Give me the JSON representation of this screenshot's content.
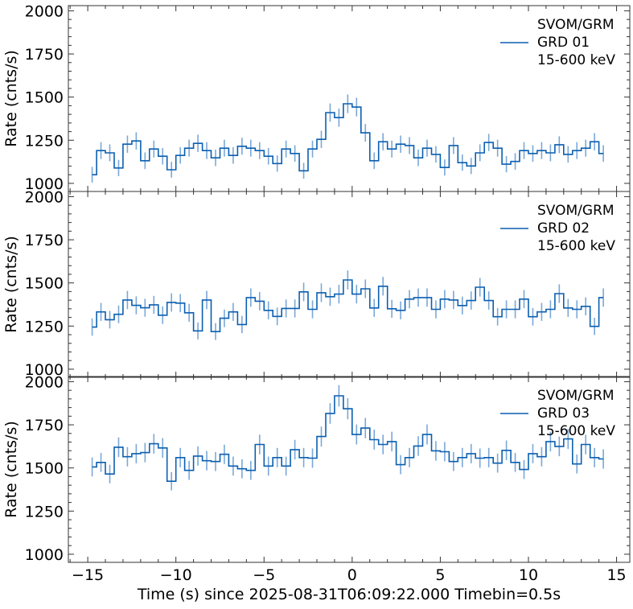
{
  "chart_data": {
    "type": "line",
    "style": "step",
    "xlabel": "Time (s) since 2025-08-31T06:09:22.000 Timebin=0.5s",
    "xlim": [
      -16.1,
      15.75
    ],
    "xticks": [
      -15,
      -10,
      -5,
      0,
      5,
      10,
      15
    ],
    "xtick_labels": [
      "−15",
      "−10",
      "−5",
      "0",
      "5",
      "10",
      "15"
    ],
    "x_start": -14.75,
    "x_step": 0.5,
    "line_color": "#0b5fb0",
    "errorbar_color": "#7aa8d8",
    "grid": false,
    "legend_placement": "upper-right",
    "panels": [
      {
        "ylabel": "Rate (cnts/s)",
        "ylim": [
          953,
          2030
        ],
        "yticks": [
          1000,
          1250,
          1500,
          1750,
          2000
        ],
        "ytick_labels": [
          "1000",
          "1250",
          "1500",
          "1750",
          "2000"
        ],
        "legend": [
          "SVOM/GRM",
          "GRD 01",
          "15-600 keV"
        ],
        "values": [
          1050,
          1190,
          1177,
          1089,
          1227,
          1246,
          1131,
          1199,
          1157,
          1079,
          1162,
          1204,
          1232,
          1190,
          1148,
          1204,
          1162,
          1215,
          1204,
          1190,
          1157,
          1115,
          1199,
          1173,
          1073,
          1199,
          1255,
          1410,
          1381,
          1461,
          1442,
          1293,
          1131,
          1241,
          1199,
          1227,
          1219,
          1148,
          1204,
          1168,
          1092,
          1219,
          1120,
          1101,
          1177,
          1237,
          1204,
          1111,
          1127,
          1190,
          1173,
          1190,
          1177,
          1224,
          1168,
          1190,
          1204,
          1241,
          1173
        ],
        "yerr": [
          46,
          49,
          49,
          47,
          50,
          50,
          48,
          49,
          48,
          46,
          48,
          49,
          50,
          49,
          48,
          49,
          48,
          49,
          49,
          49,
          48,
          47,
          49,
          48,
          46,
          49,
          50,
          53,
          53,
          54,
          54,
          51,
          48,
          50,
          49,
          50,
          49,
          48,
          49,
          48,
          47,
          49,
          47,
          47,
          49,
          50,
          49,
          47,
          48,
          49,
          48,
          49,
          49,
          49,
          48,
          49,
          49,
          50,
          48
        ]
      },
      {
        "ylabel": "Rate (cnts/s)",
        "ylim": [
          953,
          2030
        ],
        "yticks": [
          1000,
          1250,
          1500,
          1750,
          2000
        ],
        "ytick_labels": [
          "1000",
          "1250",
          "1500",
          "1750",
          "2000"
        ],
        "legend": [
          "SVOM/GRM",
          "GRD 02",
          "15-600 keV"
        ],
        "values": [
          1244,
          1332,
          1287,
          1318,
          1401,
          1370,
          1356,
          1373,
          1313,
          1387,
          1383,
          1327,
          1222,
          1401,
          1218,
          1295,
          1332,
          1259,
          1415,
          1394,
          1341,
          1306,
          1352,
          1352,
          1448,
          1347,
          1443,
          1420,
          1435,
          1517,
          1435,
          1466,
          1355,
          1481,
          1350,
          1341,
          1406,
          1415,
          1415,
          1347,
          1406,
          1401,
          1369,
          1398,
          1475,
          1398,
          1304,
          1347,
          1347,
          1406,
          1304,
          1332,
          1347,
          1438,
          1355,
          1347,
          1364,
          1248,
          1415
        ],
        "yerr": [
          50,
          52,
          51,
          51,
          53,
          52,
          52,
          52,
          51,
          53,
          53,
          52,
          49,
          53,
          49,
          51,
          52,
          50,
          53,
          53,
          52,
          51,
          52,
          52,
          54,
          52,
          54,
          53,
          54,
          55,
          54,
          54,
          52,
          54,
          52,
          52,
          53,
          53,
          53,
          52,
          53,
          53,
          52,
          53,
          54,
          53,
          51,
          52,
          52,
          53,
          51,
          52,
          52,
          54,
          52,
          52,
          52,
          50,
          53
        ]
      },
      {
        "ylabel": "Rate (cnts/s)",
        "ylim": [
          953,
          2030
        ],
        "yticks": [
          1000,
          1250,
          1500,
          1750,
          2000
        ],
        "ytick_labels": [
          "1000",
          "1250",
          "1500",
          "1750",
          "2000"
        ],
        "legend": [
          "SVOM/GRM",
          "GRD 03",
          "15-600 keV"
        ],
        "values": [
          1506,
          1532,
          1465,
          1620,
          1565,
          1583,
          1589,
          1640,
          1616,
          1423,
          1560,
          1486,
          1569,
          1542,
          1537,
          1579,
          1511,
          1495,
          1486,
          1636,
          1511,
          1560,
          1511,
          1606,
          1560,
          1557,
          1682,
          1816,
          1918,
          1843,
          1694,
          1731,
          1664,
          1636,
          1653,
          1519,
          1560,
          1627,
          1694,
          1599,
          1594,
          1537,
          1560,
          1583,
          1557,
          1560,
          1528,
          1602,
          1532,
          1491,
          1583,
          1565,
          1653,
          1625,
          1668,
          1523,
          1636,
          1560,
          1552
        ],
        "yerr": [
          55,
          55,
          54,
          57,
          56,
          56,
          56,
          57,
          57,
          53,
          56,
          55,
          56,
          56,
          55,
          56,
          55,
          55,
          55,
          57,
          55,
          56,
          55,
          57,
          56,
          56,
          58,
          60,
          62,
          61,
          58,
          59,
          58,
          57,
          57,
          55,
          56,
          57,
          58,
          57,
          56,
          55,
          56,
          56,
          56,
          56,
          55,
          57,
          55,
          55,
          56,
          56,
          57,
          57,
          58,
          55,
          57,
          56,
          56
        ]
      }
    ]
  }
}
